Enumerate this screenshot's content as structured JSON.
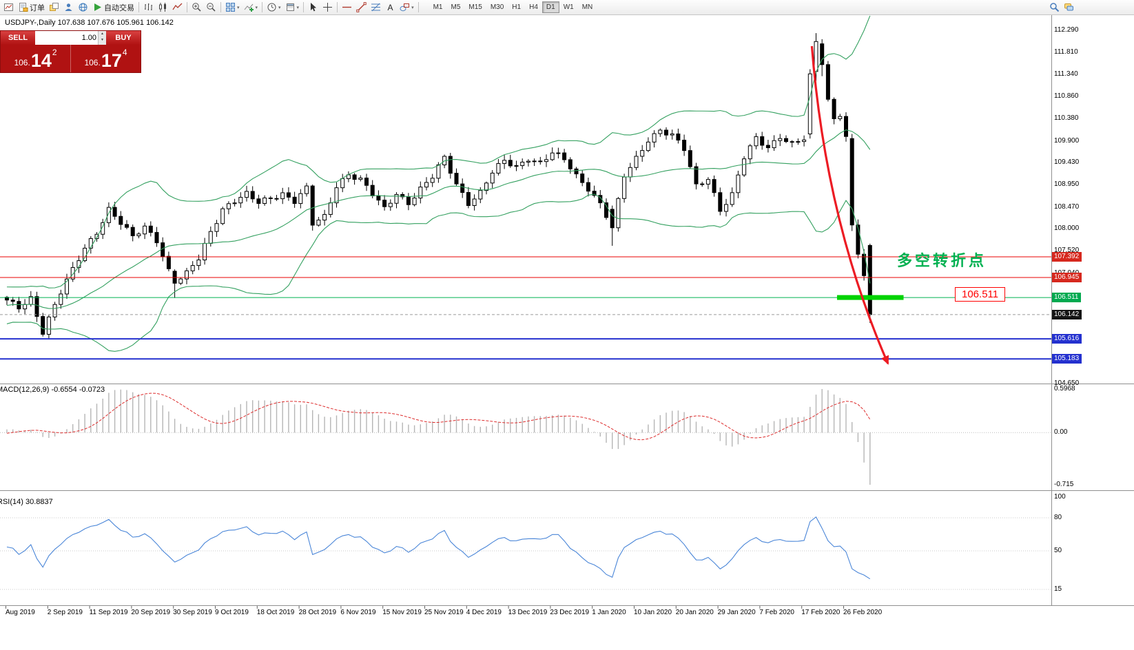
{
  "chart": {
    "title": "USDJPY-,Daily 107.638 107.676 105.961 106.142"
  },
  "trade_panel": {
    "sell_label": "SELL",
    "buy_label": "BUY",
    "volume": "1.00",
    "bid_prefix": "106.",
    "bid_main": "14",
    "bid_sup": "2",
    "ask_prefix": "106.",
    "ask_main": "17",
    "ask_sup": "4"
  },
  "toolbar": {
    "items": [
      {
        "name": "new-chart-button",
        "icon": "newchart"
      },
      {
        "name": "new-order-button",
        "icon": "order",
        "label": "订单"
      },
      {
        "name": "layouts-button",
        "icon": "layouts"
      },
      {
        "name": "profile-button",
        "icon": "person"
      },
      {
        "name": "community-button",
        "icon": "globe"
      },
      {
        "name": "algo-trading-button",
        "icon": "play",
        "label": "自动交易"
      },
      {
        "sep": true
      },
      {
        "name": "bar-chart-button",
        "icon": "bars"
      },
      {
        "name": "candle-chart-button",
        "icon": "candles"
      },
      {
        "name": "line-chart-button",
        "icon": "linechart"
      },
      {
        "sep": true
      },
      {
        "name": "zoom-in-button",
        "icon": "zoomin"
      },
      {
        "name": "zoom-out-button",
        "icon": "zoomout"
      },
      {
        "sep": true
      },
      {
        "name": "tile-windows-button",
        "icon": "tiles",
        "caret": true
      },
      {
        "name": "indicators-button",
        "icon": "indicator",
        "caret": true
      },
      {
        "sep": true
      },
      {
        "name": "periods-button",
        "icon": "clock",
        "caret": true
      },
      {
        "name": "templates-button",
        "icon": "template",
        "caret": true
      },
      {
        "sep": true
      },
      {
        "name": "cursor-button",
        "icon": "cursor"
      },
      {
        "name": "crosshair-button",
        "icon": "crosshair"
      },
      {
        "sep": true
      },
      {
        "name": "hline-button",
        "icon": "hline"
      },
      {
        "name": "trendline-button",
        "icon": "trend"
      },
      {
        "name": "fibonacci-button",
        "icon": "fibo"
      },
      {
        "name": "text-button",
        "icon": "textA"
      },
      {
        "name": "shapes-button",
        "icon": "shapes",
        "caret": true
      },
      {
        "sep": true
      }
    ],
    "timeframes": [
      "M1",
      "M5",
      "M15",
      "M30",
      "H1",
      "H4",
      "D1",
      "W1",
      "MN"
    ],
    "active_timeframe": "D1",
    "right_items": [
      {
        "name": "search-button",
        "icon": "search"
      },
      {
        "name": "chat-button",
        "icon": "chat"
      }
    ]
  },
  "macd_panel": {
    "label": "MACD(12,26,9) -0.6554 -0.0723",
    "axis": [
      "0.5968",
      "0.00",
      "-0.715"
    ]
  },
  "rsi_panel": {
    "label": "RSI(14) 30.8837",
    "axis": [
      "100",
      "80",
      "50",
      "15"
    ],
    "grid_levels": [
      80,
      50,
      15
    ]
  },
  "annotations": {
    "turning_point_text": "多空转折点",
    "price_box_label": "106.511",
    "highlight": {
      "from_bar": 138.5,
      "to_bar": 149.6,
      "price": 106.511
    },
    "arrow": {
      "from_bar": 134.3,
      "from_price": 111.95,
      "to_bar": 147.0,
      "to_price": 105.08
    }
  },
  "price_axis": {
    "labels": [
      "112.290",
      "111.810",
      "111.340",
      "110.860",
      "110.380",
      "109.900",
      "109.430",
      "108.950",
      "108.470",
      "108.000",
      "107.520",
      "107.040",
      "104.650"
    ]
  },
  "date_axis": {
    "labels": [
      "Aug 2019",
      "2 Sep 2019",
      "11 Sep 2019",
      "20 Sep 2019",
      "30 Sep 2019",
      "9 Oct 2019",
      "18 Oct 2019",
      "28 Oct 2019",
      "6 Nov 2019",
      "15 Nov 2019",
      "25 Nov 2019",
      "4 Dec 2019",
      "13 Dec 2019",
      "23 Dec 2019",
      "1 Jan 2020",
      "10 Jan 2020",
      "20 Jan 2020",
      "29 Jan 2020",
      "7 Feb 2020",
      "17 Feb 2020",
      "26 Feb 2020"
    ]
  },
  "colors": {
    "bull": "#ffffff",
    "bear": "#000000",
    "wick": "#000000",
    "bollinger": "#33a05f",
    "macd_histogram": "#b5b5b5",
    "macd_signal": "#dd2c2c",
    "rsi_line": "#4a86d8",
    "grid_dotted": "#c9c9c9",
    "arrow": "#ec1c24",
    "highlight": "#00d300",
    "annotation_green": "#00b050",
    "callout_red": "#ff0000",
    "panel_red": "#b01212",
    "tag_red": "#d6281e",
    "tag_green": "#00a94f",
    "tag_blue": "#2431cf",
    "tag_black": "#141414"
  },
  "chart_data": {
    "type": "candlestick",
    "symbol": "USDJPY-",
    "timeframe": "Daily",
    "last_ohlc": {
      "open": 107.638,
      "high": 107.676,
      "low": 105.961,
      "close": 106.142
    },
    "y_range": [
      104.65,
      112.29
    ],
    "x_range": [
      "Aug 2019",
      "Feb 2020"
    ],
    "num_candles": 145,
    "anchors": [
      [
        0,
        106.42
      ],
      [
        2,
        106.3
      ],
      [
        4,
        106.52
      ],
      [
        6,
        105.78
      ],
      [
        7,
        106.05
      ],
      [
        9,
        106.6
      ],
      [
        11,
        107.1
      ],
      [
        13,
        107.6
      ],
      [
        15,
        107.95
      ],
      [
        17,
        108.42
      ],
      [
        19,
        108.1
      ],
      [
        21,
        107.8
      ],
      [
        23,
        108.05
      ],
      [
        25,
        107.78
      ],
      [
        27,
        107.1
      ],
      [
        28,
        106.82
      ],
      [
        30,
        107.0
      ],
      [
        32,
        107.35
      ],
      [
        34,
        107.95
      ],
      [
        36,
        108.45
      ],
      [
        38,
        108.6
      ],
      [
        40,
        108.72
      ],
      [
        42,
        108.55
      ],
      [
        44,
        108.68
      ],
      [
        46,
        108.78
      ],
      [
        48,
        108.6
      ],
      [
        50,
        108.85
      ],
      [
        51,
        108.08
      ],
      [
        53,
        108.25
      ],
      [
        55,
        108.95
      ],
      [
        57,
        109.2
      ],
      [
        59,
        109.05
      ],
      [
        61,
        108.72
      ],
      [
        63,
        108.42
      ],
      [
        65,
        108.78
      ],
      [
        67,
        108.58
      ],
      [
        69,
        108.85
      ],
      [
        71,
        109.1
      ],
      [
        73,
        109.52
      ],
      [
        75,
        108.98
      ],
      [
        77,
        108.58
      ],
      [
        79,
        108.78
      ],
      [
        81,
        109.2
      ],
      [
        83,
        109.45
      ],
      [
        85,
        109.35
      ],
      [
        87,
        109.55
      ],
      [
        89,
        109.42
      ],
      [
        91,
        109.62
      ],
      [
        93,
        109.48
      ],
      [
        95,
        109.15
      ],
      [
        97,
        108.9
      ],
      [
        99,
        108.55
      ],
      [
        101,
        108.02
      ],
      [
        103,
        109.12
      ],
      [
        105,
        109.52
      ],
      [
        107,
        109.95
      ],
      [
        109,
        110.15
      ],
      [
        111,
        110.0
      ],
      [
        113,
        109.7
      ],
      [
        115,
        108.92
      ],
      [
        117,
        109.12
      ],
      [
        119,
        108.42
      ],
      [
        121,
        108.72
      ],
      [
        123,
        109.52
      ],
      [
        125,
        109.95
      ],
      [
        127,
        109.78
      ],
      [
        129,
        110.02
      ],
      [
        131,
        109.82
      ],
      [
        133,
        109.92
      ],
      [
        134,
        111.35
      ],
      [
        135,
        112.05
      ],
      [
        136,
        111.55
      ],
      [
        137,
        110.8
      ],
      [
        138,
        110.38
      ],
      [
        139,
        110.45
      ],
      [
        140,
        110.0
      ],
      [
        141,
        108.08
      ],
      [
        142,
        107.45
      ],
      [
        143,
        106.98
      ],
      [
        144,
        106.142
      ]
    ],
    "overrides": {
      "28": [
        107.08,
        107.12,
        106.5,
        106.82
      ],
      "101": [
        108.42,
        108.5,
        107.63,
        108.02
      ],
      "134": [
        110.05,
        111.45,
        109.95,
        111.35
      ],
      "135": [
        111.4,
        112.23,
        111.2,
        112.05
      ],
      "136": [
        112.0,
        112.1,
        111.3,
        111.55
      ],
      "141": [
        109.95,
        110.05,
        107.95,
        108.08
      ],
      "144": [
        107.638,
        107.676,
        105.961,
        106.142
      ]
    },
    "overlays": {
      "bollinger_bands": {
        "period": 20,
        "deviation": 2
      }
    },
    "levels": [
      {
        "price": 107.392,
        "label": "107.392",
        "color": "#e80000",
        "width": 1,
        "tag": "tag_red"
      },
      {
        "price": 106.945,
        "label": "106.945",
        "color": "#e80000",
        "width": 1,
        "tag": "tag_red"
      },
      {
        "price": 106.511,
        "label": "106.511",
        "color": "#00b050",
        "width": 1,
        "tag": "tag_green"
      },
      {
        "price": 106.142,
        "label": "106.142",
        "color": "#9a9a9a",
        "width": 1,
        "dash": "4,3",
        "tag": "tag_black"
      },
      {
        "price": 105.616,
        "label": "105.616",
        "color": "#2431cf",
        "width": 2,
        "tag": "tag_blue"
      },
      {
        "price": 105.183,
        "label": "105.183",
        "color": "#2431cf",
        "width": 2,
        "tag": "tag_blue"
      }
    ],
    "indicators": [
      {
        "name": "MACD",
        "params": "12,26,9",
        "values": [
          -0.6554,
          -0.0723
        ],
        "scale": [
          0.5968,
          0.0,
          -0.715
        ]
      },
      {
        "name": "RSI",
        "params": "14",
        "value": 30.8837,
        "scale": [
          100,
          80,
          50,
          15
        ]
      }
    ]
  }
}
